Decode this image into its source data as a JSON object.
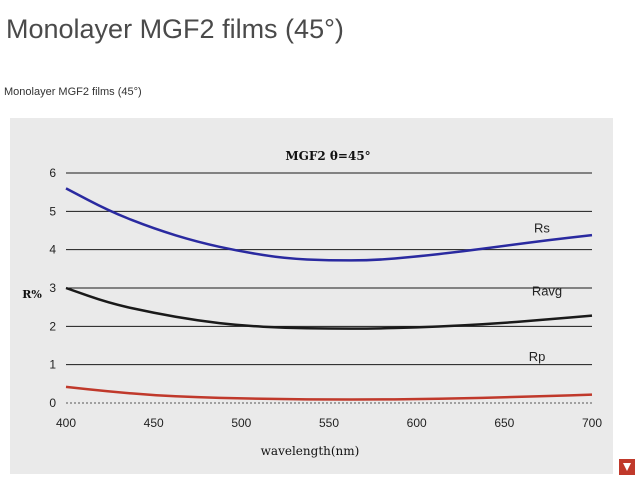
{
  "page": {
    "title": "Monolayer MGF2 films (45°)",
    "caption": "Monolayer MGF2 films (45°)"
  },
  "chart_data": {
    "type": "line",
    "title": "MGF2  θ=45°",
    "xlabel": "wavelength(nm)",
    "ylabel": "R%",
    "xlim": [
      400,
      700
    ],
    "ylim": [
      0,
      6
    ],
    "x_ticks": [
      "400",
      "450",
      "500",
      "550",
      "600",
      "650",
      "700"
    ],
    "y_ticks": [
      "0",
      "1",
      "2",
      "3",
      "4",
      "5",
      "6"
    ],
    "grid": "horizontal",
    "x": [
      400,
      425,
      450,
      475,
      500,
      525,
      550,
      575,
      600,
      625,
      650,
      675,
      700
    ],
    "series": [
      {
        "name": "Rs",
        "color": "#2a2aa0",
        "values": [
          5.6,
          5.0,
          4.55,
          4.2,
          3.95,
          3.77,
          3.72,
          3.72,
          3.82,
          3.95,
          4.1,
          4.25,
          4.38
        ]
      },
      {
        "name": "Ravg",
        "color": "#1a1a1a",
        "values": [
          3.0,
          2.6,
          2.35,
          2.15,
          2.02,
          1.96,
          1.94,
          1.94,
          1.97,
          2.02,
          2.09,
          2.18,
          2.28
        ]
      },
      {
        "name": "Rp",
        "color": "#c0392b",
        "values": [
          0.42,
          0.3,
          0.2,
          0.15,
          0.12,
          0.1,
          0.09,
          0.09,
          0.1,
          0.12,
          0.15,
          0.18,
          0.22
        ]
      }
    ],
    "colors": {
      "plot_bg": "#eaeaea",
      "grid": "#1a1a1a"
    }
  }
}
